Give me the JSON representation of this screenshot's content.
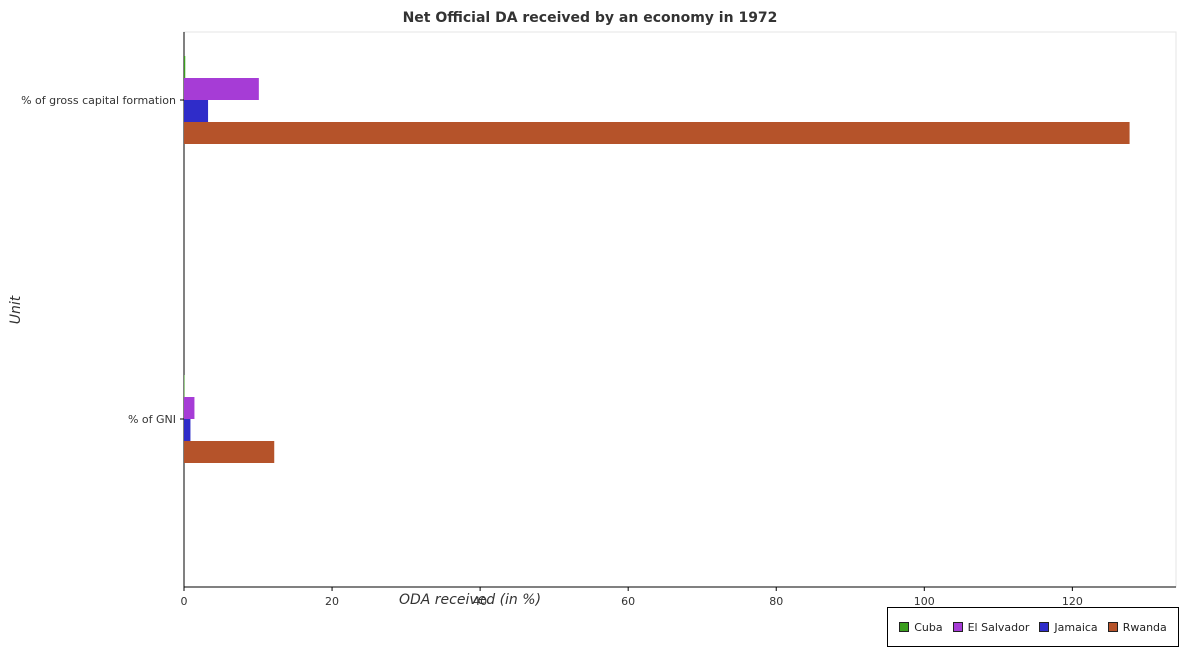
{
  "chart_data": {
    "type": "bar",
    "orientation": "horizontal",
    "title": "Net Official DA received by an economy in 1972",
    "xlabel": "ODA received (in %)",
    "ylabel": "Unit",
    "xlim": [
      0,
      134
    ],
    "xticks": [
      0,
      20,
      40,
      60,
      80,
      100,
      120
    ],
    "categories": [
      "% of GNI",
      "% of gross capital formation"
    ],
    "series": [
      {
        "name": "Cuba",
        "color": "#3a9e1e",
        "values": [
          0.04,
          0.17
        ]
      },
      {
        "name": "El Salvador",
        "color": "#a63cd6",
        "values": [
          1.41,
          10.11
        ]
      },
      {
        "name": "Jamaica",
        "color": "#2f2cc9",
        "values": [
          0.87,
          3.25
        ]
      },
      {
        "name": "Rwanda",
        "color": "#b5532a",
        "values": [
          12.19,
          127.73
        ]
      }
    ],
    "legend_position": "bottom-right",
    "grid": false
  }
}
